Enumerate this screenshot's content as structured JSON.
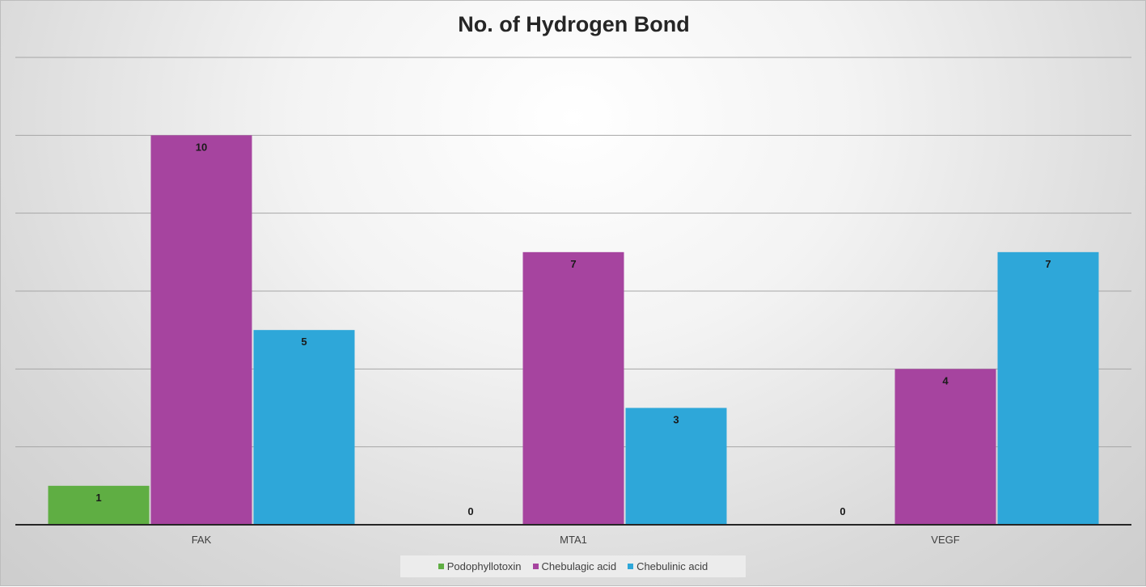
{
  "chart_data": {
    "type": "bar",
    "title": "No. of Hydrogen Bond",
    "categories": [
      "FAK",
      "MTA1",
      "VEGF"
    ],
    "series": [
      {
        "name": "Podophyllotoxin",
        "color": "#5fae43",
        "values": [
          1,
          0,
          0
        ]
      },
      {
        "name": "Chebulagic acid",
        "color": "#a6449f",
        "values": [
          10,
          7,
          4
        ]
      },
      {
        "name": "Chebulinic acid",
        "color": "#2ea7d9",
        "values": [
          5,
          3,
          7
        ]
      }
    ],
    "ylim": [
      0,
      12
    ],
    "grid": true,
    "y_tick_labels_shown": false,
    "data_labels": true,
    "legend_position": "bottom"
  }
}
